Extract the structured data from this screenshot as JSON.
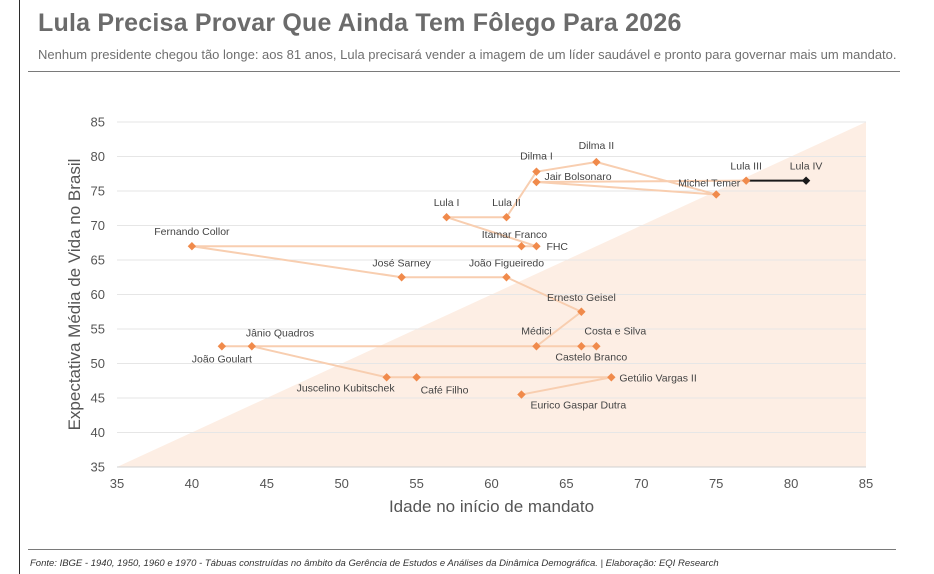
{
  "header": {
    "title": "Lula Precisa Provar Que Ainda Tem Fôlego Para 2026",
    "subtitle": "Nenhum presidente chegou tão longe: aos 81 anos, Lula precisará vender a imagem de um líder saudável e pronto para governar mais um mandato."
  },
  "footer": {
    "source": "Fonte: IBGE - 1940, 1950, 1960 e 1970 - Tábuas construídas no âmbito da Gerência de Estudos e Análises da Dinâmica Demográfica. | Elaboração: EQI Research"
  },
  "chart_data": {
    "type": "scatter",
    "xlabel": "Idade no início de mandato",
    "ylabel": "Expectativa Média de Vida no Brasil",
    "xlim": [
      35,
      85
    ],
    "ylim": [
      35,
      85
    ],
    "xticks": [
      35,
      40,
      45,
      50,
      55,
      60,
      65,
      70,
      75,
      80,
      85
    ],
    "yticks": [
      35,
      40,
      45,
      50,
      55,
      60,
      65,
      70,
      75,
      80,
      85
    ],
    "grid": "horizontal",
    "shaded_region": "below diagonal y = x",
    "colors": {
      "points": "#f08a4b",
      "path": "#f8ceb0",
      "highlight": "#1a1a1a",
      "shade": "#fdeee4"
    },
    "points": [
      {
        "name": "Getúlio Vargas II",
        "x": 68,
        "y": 48
      },
      {
        "name": "Café Filho",
        "x": 55,
        "y": 48
      },
      {
        "name": "Juscelino Kubitschek",
        "x": 53,
        "y": 48
      },
      {
        "name": "Jânio Quadros",
        "x": 44,
        "y": 52.5
      },
      {
        "name": "João Goulart",
        "x": 42,
        "y": 52.5
      },
      {
        "name": "Castelo Branco",
        "x": 66,
        "y": 52.5
      },
      {
        "name": "Costa e Silva",
        "x": 67,
        "y": 52.5
      },
      {
        "name": "Médici",
        "x": 63,
        "y": 52.5
      },
      {
        "name": "Ernesto Geisel",
        "x": 66,
        "y": 57.5
      },
      {
        "name": "João Figueiredo",
        "x": 61,
        "y": 62.5
      },
      {
        "name": "José Sarney",
        "x": 54,
        "y": 62.5
      },
      {
        "name": "Fernando Collor",
        "x": 40,
        "y": 67
      },
      {
        "name": "Itamar Franco",
        "x": 62,
        "y": 67
      },
      {
        "name": "FHC",
        "x": 63,
        "y": 67
      },
      {
        "name": "Lula I",
        "x": 57,
        "y": 71.2
      },
      {
        "name": "Lula II",
        "x": 61,
        "y": 71.2
      },
      {
        "name": "Dilma I",
        "x": 63,
        "y": 77.8
      },
      {
        "name": "Dilma II",
        "x": 67,
        "y": 79.2
      },
      {
        "name": "Michel Temer",
        "x": 75,
        "y": 74.5
      },
      {
        "name": "Jair Bolsonaro",
        "x": 63,
        "y": 76.3
      },
      {
        "name": "Lula III",
        "x": 77,
        "y": 76.5
      },
      {
        "name": "Lula IV",
        "x": 81,
        "y": 76.5
      },
      {
        "name": "Eurico Gaspar Dutra",
        "x": 62,
        "y": 45.5
      }
    ]
  }
}
